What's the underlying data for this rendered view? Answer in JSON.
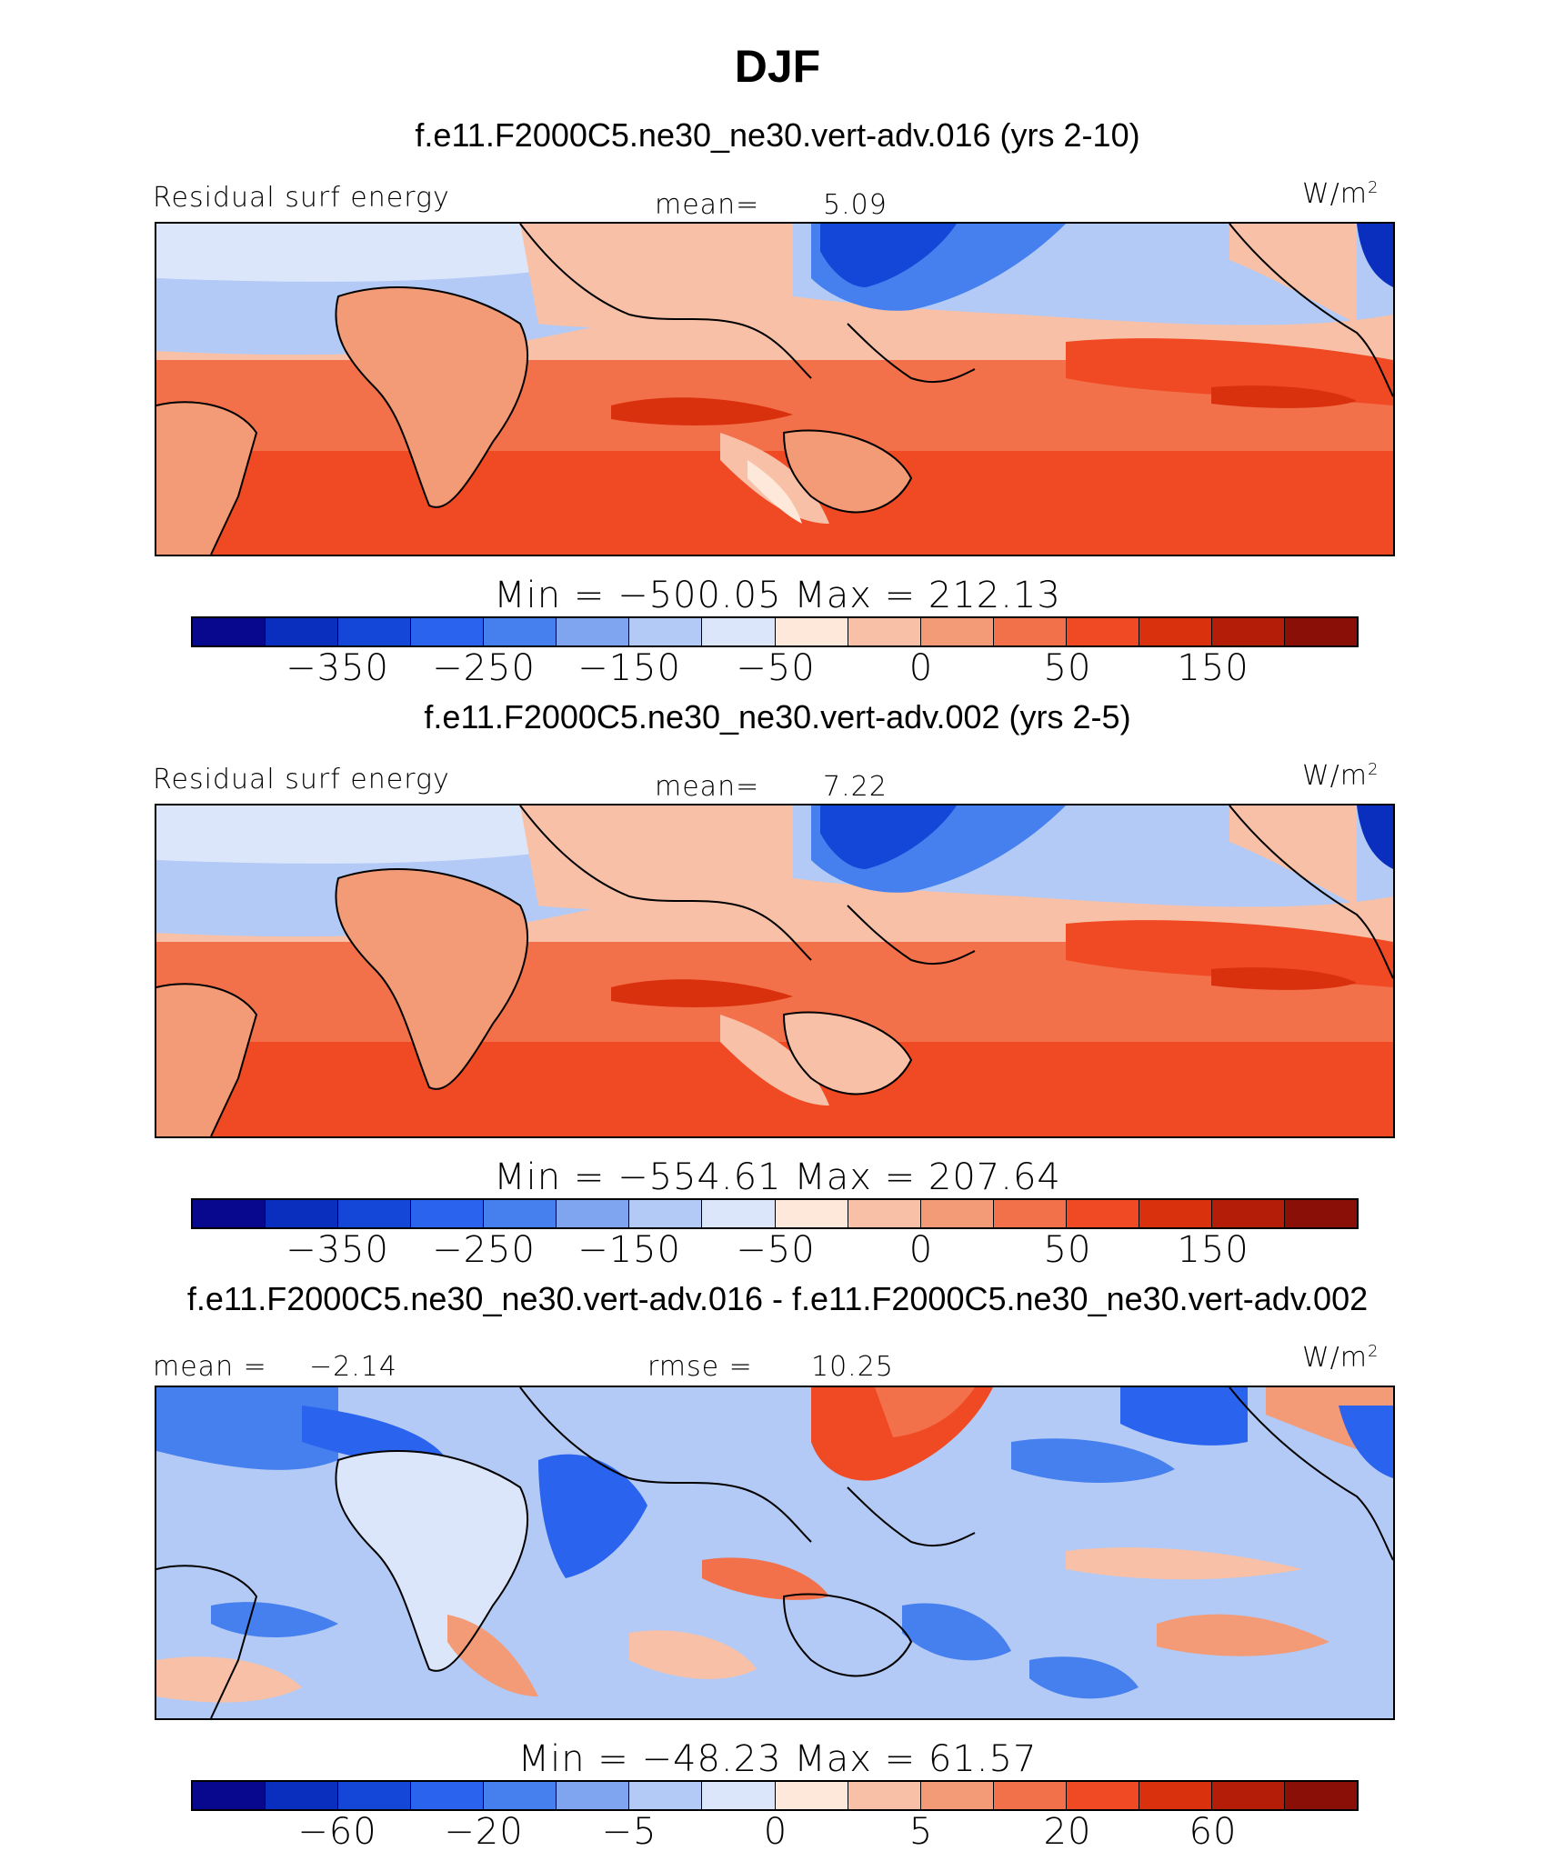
{
  "title": "DJF",
  "panels": [
    {
      "title": "f.e11.F2000C5.ne30_ne30.vert-adv.016 (yrs 2-10)",
      "left_label": "Residual surf energy",
      "stat_label": "mean=",
      "stat_value": "5.09",
      "units": "W/m",
      "units_sup": "2",
      "min_max": "Min = −500.05 Max = 212.13",
      "colorbar": {
        "colors": [
          "#08088f",
          "#0a2fbf",
          "#1446d8",
          "#2a63ee",
          "#4680ee",
          "#7fa4f0",
          "#b3caf6",
          "#dbe6fa",
          "#fde8d9",
          "#f8c1a7",
          "#f39a77",
          "#f2704a",
          "#ef4a24",
          "#d9300d",
          "#b41e08",
          "#8a0f06"
        ],
        "ticks": [
          "−350",
          "−250",
          "−150",
          "−50",
          "0",
          "50",
          "150"
        ]
      }
    },
    {
      "title": "f.e11.F2000C5.ne30_ne30.vert-adv.002 (yrs 2-5)",
      "left_label": "Residual surf energy",
      "stat_label": "mean=",
      "stat_value": "7.22",
      "units": "W/m",
      "units_sup": "2",
      "min_max": "Min = −554.61 Max = 207.64",
      "colorbar": {
        "colors": [
          "#08088f",
          "#0a2fbf",
          "#1446d8",
          "#2a63ee",
          "#4680ee",
          "#7fa4f0",
          "#b3caf6",
          "#dbe6fa",
          "#fde8d9",
          "#f8c1a7",
          "#f39a77",
          "#f2704a",
          "#ef4a24",
          "#d9300d",
          "#b41e08",
          "#8a0f06"
        ],
        "ticks": [
          "−350",
          "−250",
          "−150",
          "−50",
          "0",
          "50",
          "150"
        ]
      }
    },
    {
      "title": "f.e11.F2000C5.ne30_ne30.vert-adv.016 - f.e11.F2000C5.ne30_ne30.vert-adv.002",
      "left_label": "mean =",
      "left_value": "−2.14",
      "stat_label": "rmse =",
      "stat_value": "10.25",
      "units": "W/m",
      "units_sup": "2",
      "min_max": "Min = −48.23 Max = 61.57",
      "colorbar": {
        "colors": [
          "#08088f",
          "#0a2fbf",
          "#1446d8",
          "#2a63ee",
          "#4680ee",
          "#7fa4f0",
          "#b3caf6",
          "#dbe6fa",
          "#fde8d9",
          "#f8c1a7",
          "#f39a77",
          "#f2704a",
          "#ef4a24",
          "#d9300d",
          "#b41e08",
          "#8a0f06"
        ],
        "ticks": [
          "−60",
          "−20",
          "−5",
          "0",
          "5",
          "20",
          "60"
        ]
      }
    }
  ]
}
